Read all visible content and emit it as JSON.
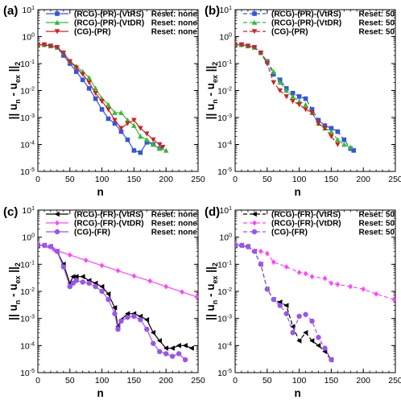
{
  "chart_data": [
    {
      "type": "line",
      "panel_label": "(a)",
      "xlabel": "n",
      "ylabel": "|| u_n - u_ex ||_2",
      "xlim": [
        0,
        250
      ],
      "ylim": [
        1e-05,
        10
      ],
      "yscale": "log",
      "xticks": [
        "0",
        "50",
        "100",
        "150",
        "200",
        "250"
      ],
      "yticks": [
        {
          "base": "10",
          "exp": "1"
        },
        {
          "base": "10",
          "exp": "0"
        },
        {
          "base": "10",
          "exp": "-1"
        },
        {
          "base": "10",
          "exp": "-2"
        },
        {
          "base": "10",
          "exp": "-3"
        },
        {
          "base": "10",
          "exp": "-4"
        },
        {
          "base": "10",
          "exp": "-5"
        }
      ],
      "legend_position": "top-right",
      "series": [
        {
          "name": "(RCG)-(PR)-(VtRS)",
          "reset": "Reset: none",
          "color": "#3355dd",
          "dash": "solid",
          "marker": "square",
          "x": [
            0,
            10,
            20,
            30,
            40,
            50,
            60,
            70,
            80,
            90,
            100,
            110,
            120,
            130,
            140,
            150,
            160,
            170,
            180,
            190
          ],
          "y": [
            0.5,
            0.5,
            0.45,
            0.4,
            0.2,
            0.1,
            0.05,
            0.025,
            0.012,
            0.005,
            0.002,
            0.0009,
            0.0006,
            0.0003,
            0.00015,
            6e-05,
            5e-05,
            0.00012,
            0.0001,
            7e-05
          ]
        },
        {
          "name": "(RCG)-(PR)-(VtDR)",
          "reset": "Reset: none",
          "color": "#33bb33",
          "dash": "solid",
          "marker": "triangle-up",
          "x": [
            0,
            10,
            20,
            30,
            40,
            50,
            60,
            70,
            80,
            90,
            100,
            110,
            120,
            130,
            140,
            150,
            160,
            170,
            180,
            190,
            200
          ],
          "y": [
            0.5,
            0.5,
            0.45,
            0.4,
            0.25,
            0.12,
            0.08,
            0.05,
            0.03,
            0.012,
            0.005,
            0.003,
            0.0015,
            0.0015,
            0.0008,
            0.0005,
            0.0002,
            0.00015,
            0.0001,
            7e-05,
            6e-05
          ]
        },
        {
          "name": "(CG)-(PR)",
          "reset": "Reset: none",
          "color": "#cc2222",
          "dash": "solid",
          "marker": "triangle-down",
          "x": [
            0,
            10,
            20,
            30,
            40,
            50,
            60,
            70,
            80,
            90,
            100,
            110,
            120,
            130,
            140,
            150,
            160,
            170,
            180,
            190,
            195
          ],
          "y": [
            0.5,
            0.5,
            0.45,
            0.4,
            0.25,
            0.12,
            0.07,
            0.04,
            0.02,
            0.008,
            0.004,
            0.002,
            0.0008,
            0.0004,
            0.0006,
            0.0008,
            0.0004,
            0.00025,
            0.00015,
            0.0001,
            8e-05
          ]
        }
      ]
    },
    {
      "type": "line",
      "panel_label": "(b)",
      "xlabel": "n",
      "ylabel": "|| u_n - u_ex ||_2",
      "xlim": [
        0,
        250
      ],
      "ylim": [
        1e-05,
        10
      ],
      "yscale": "log",
      "xticks": [
        "0",
        "50",
        "100",
        "150",
        "200",
        "250"
      ],
      "yticks": [
        {
          "base": "10",
          "exp": "1"
        },
        {
          "base": "10",
          "exp": "0"
        },
        {
          "base": "10",
          "exp": "-1"
        },
        {
          "base": "10",
          "exp": "-2"
        },
        {
          "base": "10",
          "exp": "-3"
        },
        {
          "base": "10",
          "exp": "-4"
        },
        {
          "base": "10",
          "exp": "-5"
        }
      ],
      "legend_position": "top-right",
      "series": [
        {
          "name": "(RCG)-(PR)-(VtRS)",
          "reset": "Reset: 50",
          "color": "#3355dd",
          "dash": "dashed",
          "marker": "square",
          "x": [
            0,
            10,
            20,
            30,
            40,
            50,
            60,
            70,
            80,
            90,
            100,
            110,
            120,
            130,
            140,
            150,
            160,
            170,
            180,
            185
          ],
          "y": [
            0.5,
            0.5,
            0.45,
            0.4,
            0.25,
            0.12,
            0.04,
            0.025,
            0.012,
            0.008,
            0.006,
            0.005,
            0.002,
            0.0008,
            0.0005,
            0.0004,
            0.0003,
            0.00015,
            7e-05,
            6e-05
          ]
        },
        {
          "name": "(RCG)-(PR)-(VtDR)",
          "reset": "Reset: 50",
          "color": "#33bb33",
          "dash": "dashed",
          "marker": "triangle-up",
          "x": [
            0,
            10,
            20,
            30,
            40,
            50,
            60,
            70,
            80,
            90,
            100,
            110,
            120,
            130,
            140,
            150,
            160,
            170,
            180
          ],
          "y": [
            0.5,
            0.5,
            0.45,
            0.4,
            0.25,
            0.12,
            0.05,
            0.02,
            0.01,
            0.006,
            0.004,
            0.003,
            0.0015,
            0.0006,
            0.0004,
            0.0003,
            0.00015,
            0.0001,
            8e-05
          ]
        },
        {
          "name": "(CG)-(PR)",
          "reset": "Reset: 50",
          "color": "#cc2222",
          "dash": "dashed",
          "marker": "triangle-down",
          "x": [
            0,
            10,
            20,
            30,
            40,
            50,
            60,
            70,
            80,
            90,
            100,
            110,
            120,
            130,
            140,
            150,
            160
          ],
          "y": [
            0.5,
            0.5,
            0.45,
            0.4,
            0.25,
            0.1,
            0.02,
            0.01,
            0.006,
            0.004,
            0.003,
            0.002,
            0.0015,
            0.0006,
            0.0004,
            0.0002,
            0.0001
          ]
        }
      ]
    },
    {
      "type": "line",
      "panel_label": "(c)",
      "xlabel": "n",
      "ylabel": "|| u_n - u_ex ||_2",
      "xlim": [
        0,
        250
      ],
      "ylim": [
        1e-05,
        10
      ],
      "yscale": "log",
      "xticks": [
        "0",
        "50",
        "100",
        "150",
        "200",
        "250"
      ],
      "yticks": [
        {
          "base": "10",
          "exp": "1"
        },
        {
          "base": "10",
          "exp": "0"
        },
        {
          "base": "10",
          "exp": "-1"
        },
        {
          "base": "10",
          "exp": "-2"
        },
        {
          "base": "10",
          "exp": "-3"
        },
        {
          "base": "10",
          "exp": "-4"
        },
        {
          "base": "10",
          "exp": "-5"
        }
      ],
      "legend_position": "top-right",
      "series": [
        {
          "name": "(RCG)-(FR)-(VtRS)",
          "reset": "Reset: none",
          "color": "#000000",
          "dash": "solid",
          "marker": "triangle-left",
          "x": [
            0,
            10,
            20,
            30,
            40,
            50,
            55,
            60,
            70,
            80,
            90,
            100,
            110,
            120,
            125,
            130,
            140,
            150,
            160,
            170,
            180,
            190,
            200,
            210,
            220,
            230,
            240
          ],
          "y": [
            0.5,
            0.5,
            0.45,
            0.3,
            0.1,
            0.02,
            0.035,
            0.035,
            0.035,
            0.025,
            0.02,
            0.015,
            0.008,
            0.0025,
            0.0005,
            0.0009,
            0.0015,
            0.0015,
            0.0012,
            0.0009,
            0.0003,
            0.00015,
            8e-05,
            8e-05,
            0.0001,
            0.0001,
            8e-05
          ]
        },
        {
          "name": "(RCG)-(FR)-(VtDR)",
          "reset": "Reset: none",
          "color": "#ff44ff",
          "dash": "solid",
          "marker": "diamond",
          "x": [
            0,
            25,
            50,
            75,
            100,
            125,
            150,
            175,
            200,
            225,
            248
          ],
          "y": [
            0.55,
            0.35,
            0.22,
            0.14,
            0.09,
            0.058,
            0.037,
            0.024,
            0.015,
            0.0095,
            0.0062
          ]
        },
        {
          "name": "(CG)-(FR)",
          "reset": "Reset: none",
          "color": "#9955ee",
          "dash": "solid",
          "marker": "circle",
          "x": [
            0,
            10,
            20,
            30,
            40,
            50,
            55,
            60,
            70,
            80,
            90,
            100,
            110,
            120,
            125,
            130,
            140,
            150,
            160,
            170,
            180,
            190,
            200,
            210,
            220,
            230
          ],
          "y": [
            0.5,
            0.5,
            0.45,
            0.3,
            0.08,
            0.015,
            0.02,
            0.025,
            0.022,
            0.02,
            0.015,
            0.01,
            0.005,
            0.0015,
            0.0004,
            0.0008,
            0.0011,
            0.0012,
            0.0009,
            0.0004,
            0.00012,
            6e-05,
            5e-05,
            4e-05,
            5e-05,
            3e-05
          ]
        }
      ]
    },
    {
      "type": "line",
      "panel_label": "(d)",
      "xlabel": "n",
      "ylabel": "|| u_n - u_ex ||_2",
      "xlim": [
        0,
        250
      ],
      "ylim": [
        1e-05,
        10
      ],
      "yscale": "log",
      "xticks": [
        "0",
        "50",
        "100",
        "150",
        "200",
        "250"
      ],
      "yticks": [
        {
          "base": "10",
          "exp": "1"
        },
        {
          "base": "10",
          "exp": "0"
        },
        {
          "base": "10",
          "exp": "-1"
        },
        {
          "base": "10",
          "exp": "-2"
        },
        {
          "base": "10",
          "exp": "-3"
        },
        {
          "base": "10",
          "exp": "-4"
        },
        {
          "base": "10",
          "exp": "-5"
        }
      ],
      "legend_position": "top-right",
      "series": [
        {
          "name": "(RCG)-(FR)-(VtRS)",
          "reset": "Reset: 50",
          "color": "#000000",
          "dash": "dashed",
          "marker": "triangle-left",
          "x": [
            0,
            10,
            20,
            30,
            40,
            50,
            60,
            70,
            80,
            90,
            100,
            110,
            120,
            130,
            140,
            150
          ],
          "y": [
            0.5,
            0.5,
            0.45,
            0.3,
            0.1,
            0.012,
            0.005,
            0.004,
            0.003,
            0.0005,
            0.00015,
            0.0003,
            0.00015,
            0.0001,
            6e-05,
            3e-05
          ]
        },
        {
          "name": "(RCG)-(FR)-(VtDR)",
          "reset": "Reset: 50",
          "color": "#ff44ff",
          "dash": "dashed",
          "marker": "diamond",
          "x": [
            0,
            20,
            40,
            50,
            60,
            80,
            100,
            110,
            120,
            140,
            150,
            160,
            180,
            200,
            220,
            248
          ],
          "y": [
            0.55,
            0.42,
            0.3,
            0.25,
            0.12,
            0.08,
            0.05,
            0.045,
            0.035,
            0.03,
            0.02,
            0.018,
            0.015,
            0.012,
            0.008,
            0.005
          ]
        },
        {
          "name": "(CG)-(FR)",
          "reset": "Reset: 50",
          "color": "#9955ee",
          "dash": "dashed",
          "marker": "circle",
          "x": [
            0,
            10,
            20,
            30,
            40,
            50,
            60,
            70,
            80,
            90,
            100,
            110,
            120,
            130,
            140,
            150
          ],
          "y": [
            0.5,
            0.5,
            0.45,
            0.3,
            0.1,
            0.012,
            0.005,
            0.003,
            0.0015,
            0.0003,
            0.0012,
            0.0014,
            0.0008,
            0.0002,
            8e-05,
            3e-05
          ]
        }
      ]
    }
  ]
}
